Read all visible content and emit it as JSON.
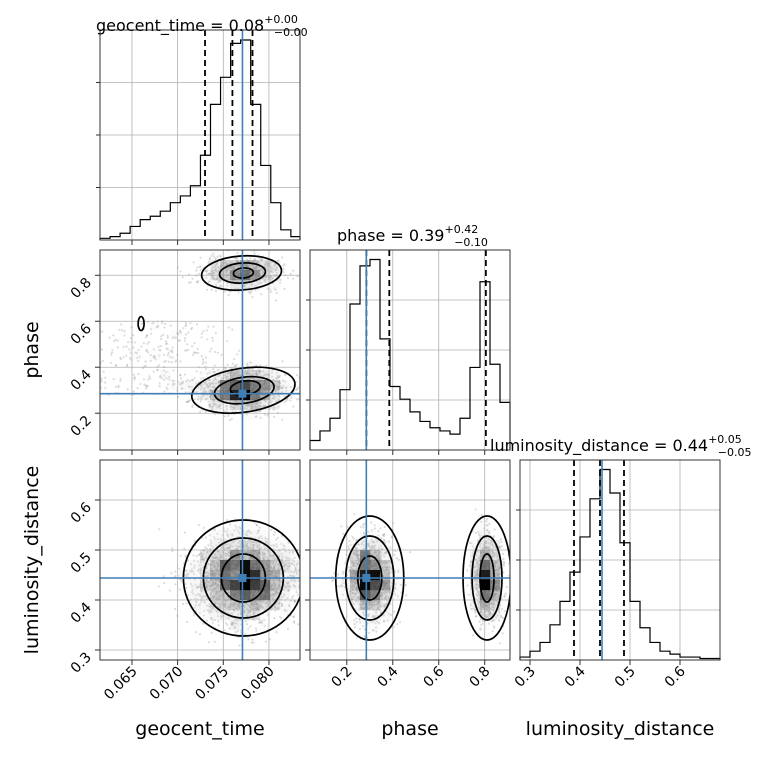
{
  "chart_data": {
    "type": "corner",
    "parameters": [
      "geocent_time",
      "phase",
      "luminosity_distance"
    ],
    "panel_titles": [
      {
        "name": "geocent_time",
        "median": "0.08",
        "plus": "+0.00",
        "minus": "−0.00"
      },
      {
        "name": "phase",
        "median": "0.39",
        "plus": "+0.42",
        "minus": "−0.10"
      },
      {
        "name": "luminosity_distance",
        "median": "0.44",
        "plus": "+0.05",
        "minus": "−0.05"
      }
    ],
    "axis_labels": {
      "x": [
        "geocent_time",
        "phase",
        "luminosity_distance"
      ],
      "y": [
        "phase",
        "luminosity_distance"
      ]
    },
    "ranges": {
      "geocent_time": [
        0.0615,
        0.0834
      ],
      "phase": [
        0.04,
        0.91
      ],
      "luminosity_distance": [
        0.28,
        0.68
      ]
    },
    "ticks": {
      "geocent_time": [
        "0.065",
        "0.070",
        "0.075",
        "0.080"
      ],
      "phase": [
        "0.2",
        "0.4",
        "0.6",
        "0.8"
      ],
      "luminosity_distance": [
        "0.3",
        "0.4",
        "0.5",
        "0.6"
      ]
    },
    "truth": {
      "geocent_time": 0.0771,
      "phase": 0.285,
      "luminosity_distance": 0.444
    },
    "quantiles": {
      "geocent_time": [
        0.073,
        0.076,
        0.0782
      ],
      "phase": [
        0.285,
        0.385,
        0.805
      ],
      "luminosity_distance": [
        0.388,
        0.44,
        0.488
      ]
    },
    "hist_geocent_time": {
      "edges": [
        0.0615,
        0.0626,
        0.0637,
        0.0648,
        0.0659,
        0.067,
        0.0681,
        0.0692,
        0.0703,
        0.0714,
        0.0725,
        0.0736,
        0.0747,
        0.0758,
        0.0769,
        0.078,
        0.0791,
        0.0802,
        0.0813,
        0.0824,
        0.0834
      ],
      "counts": [
        1,
        2,
        4,
        8,
        12,
        14,
        17,
        22,
        26,
        32,
        50,
        80,
        96,
        116,
        118,
        80,
        44,
        22,
        6,
        2
      ]
    },
    "hist_phase": {
      "edges": [
        0.04,
        0.0835,
        0.127,
        0.1705,
        0.214,
        0.2575,
        0.301,
        0.3445,
        0.388,
        0.4315,
        0.475,
        0.5185,
        0.562,
        0.6055,
        0.649,
        0.6925,
        0.736,
        0.7795,
        0.823,
        0.8665,
        0.91
      ],
      "counts": [
        6,
        12,
        20,
        38,
        92,
        116,
        120,
        70,
        40,
        32,
        24,
        18,
        14,
        12,
        10,
        20,
        52,
        106,
        54,
        30
      ]
    },
    "hist_luminosity_distance": {
      "edges": [
        0.28,
        0.3,
        0.32,
        0.34,
        0.36,
        0.38,
        0.4,
        0.42,
        0.44,
        0.46,
        0.48,
        0.5,
        0.52,
        0.54,
        0.56,
        0.58,
        0.6,
        0.62,
        0.64,
        0.66,
        0.68
      ],
      "counts": [
        2,
        6,
        12,
        24,
        40,
        60,
        84,
        110,
        130,
        114,
        80,
        40,
        22,
        12,
        6,
        4,
        2,
        2,
        1,
        1
      ]
    },
    "grid": true,
    "colors": {
      "truth": "#3f7fb7",
      "hist": "#000000",
      "quantile": "#000000",
      "grid": "#b0b0b0",
      "sample": "#9a9a9a"
    }
  }
}
